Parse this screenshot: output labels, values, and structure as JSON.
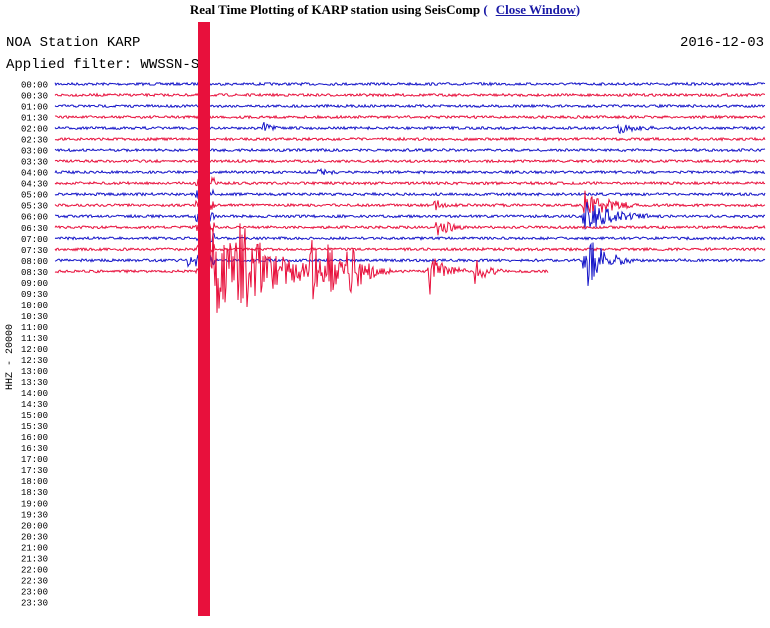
{
  "header": {
    "title": "Real Time Plotting of KARP station using SeisComp",
    "link_open": "(",
    "link": "Close Window",
    "link_close": ")"
  },
  "plot": {
    "station": "NOA Station KARP",
    "date": "2016-12-03",
    "filter": "Applied filter: WWSSN-SP",
    "channel": "HHZ - 20000",
    "time_labels": [
      "00:00",
      "00:30",
      "01:00",
      "01:30",
      "02:00",
      "02:30",
      "03:00",
      "03:30",
      "04:00",
      "04:30",
      "05:00",
      "05:30",
      "06:00",
      "06:30",
      "07:00",
      "07:30",
      "08:00",
      "08:30",
      "09:00",
      "09:30",
      "10:00",
      "10:30",
      "11:00",
      "11:30",
      "12:00",
      "12:30",
      "13:00",
      "13:30",
      "14:00",
      "14:30",
      "15:00",
      "15:30",
      "16:00",
      "16:30",
      "17:00",
      "17:30",
      "18:00",
      "18:30",
      "19:00",
      "19:30",
      "20:00",
      "20:30",
      "21:00",
      "21:30",
      "22:00",
      "22:30",
      "23:00",
      "23:30"
    ]
  }
}
